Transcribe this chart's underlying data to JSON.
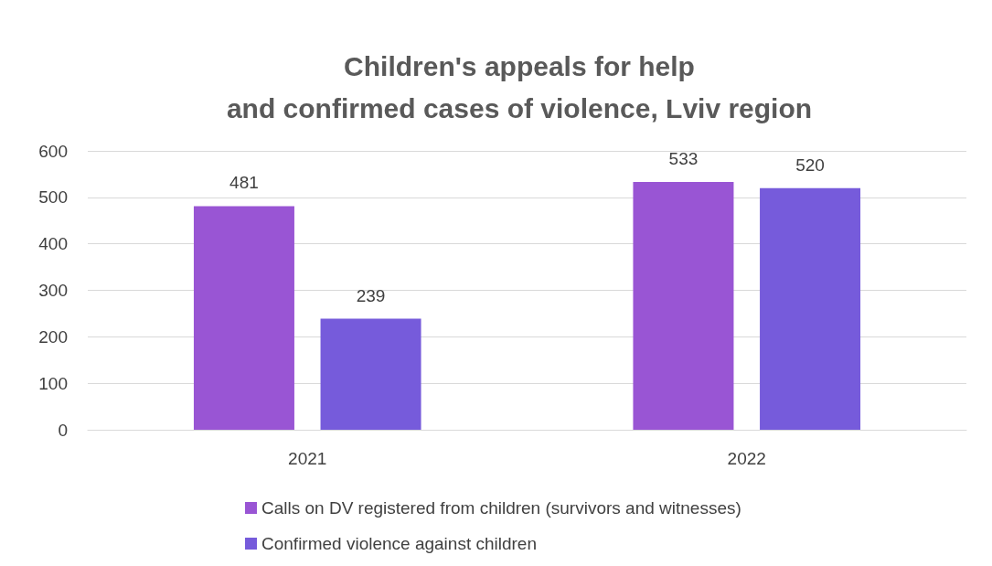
{
  "chart_data": {
    "type": "bar",
    "title": "Children's appeals for help\nand confirmed cases of violence, Lviv region",
    "categories": [
      "2021",
      "2022"
    ],
    "series": [
      {
        "name": "Calls on DV registered from children (survivors and witnesses)",
        "color": "#9955d4",
        "values": [
          481,
          533
        ]
      },
      {
        "name": "Confirmed violence against children",
        "color": "#765bdb",
        "values": [
          239,
          520
        ]
      }
    ],
    "ylim": [
      0,
      600
    ],
    "yticks": [
      0,
      100,
      200,
      300,
      400,
      500,
      600
    ],
    "grid": "y",
    "legend": "bottom",
    "data_labels": true
  }
}
